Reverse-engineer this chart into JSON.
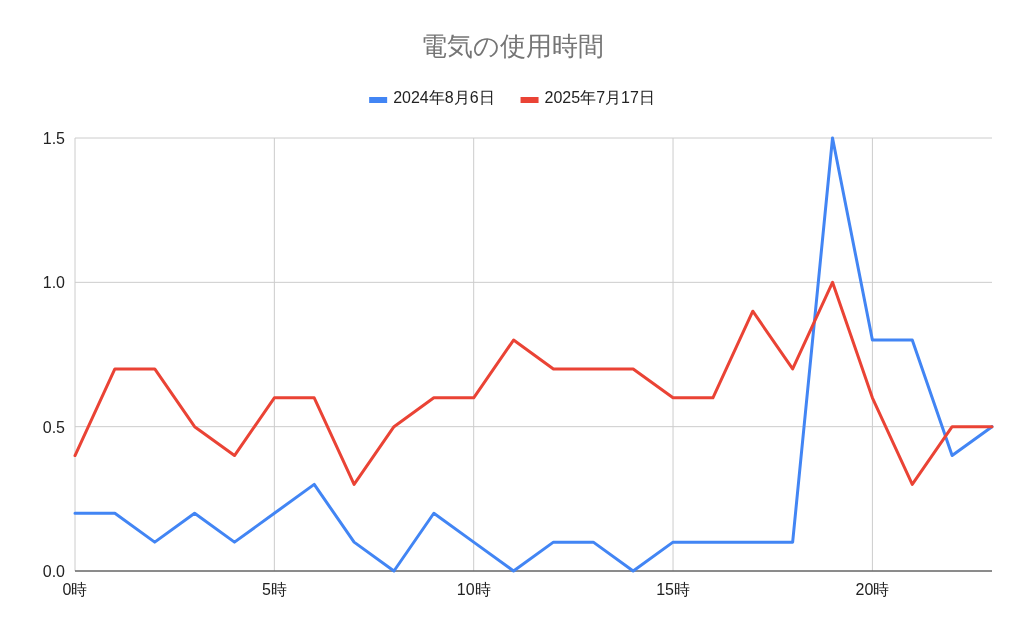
{
  "chart_data": {
    "type": "line",
    "title": "電気の使用時間",
    "x": [
      0,
      1,
      2,
      3,
      4,
      5,
      6,
      7,
      8,
      9,
      10,
      11,
      12,
      13,
      14,
      15,
      16,
      17,
      18,
      19,
      20,
      21,
      22,
      23
    ],
    "series": [
      {
        "name": "2024年8月6日",
        "color": "#4285f4",
        "values": [
          0.2,
          0.2,
          0.1,
          0.2,
          0.1,
          0.2,
          0.3,
          0.1,
          0,
          0.2,
          0.1,
          0,
          0.1,
          0.1,
          0,
          0.1,
          0.1,
          0.1,
          0.1,
          1.5,
          0.8,
          0.8,
          0.4,
          0.5
        ]
      },
      {
        "name": "2025年7月17日",
        "color": "#ea4335",
        "values": [
          0.4,
          0.7,
          0.7,
          0.5,
          0.4,
          0.6,
          0.6,
          0.3,
          0.5,
          0.6,
          0.6,
          0.8,
          0.7,
          0.7,
          0.7,
          0.6,
          0.6,
          0.9,
          0.7,
          1.0,
          0.6,
          0.3,
          0.5,
          0.5
        ]
      }
    ],
    "xlim": [
      0,
      23
    ],
    "xticks": [
      {
        "value": 0,
        "label": "0時"
      },
      {
        "value": 5,
        "label": "5時"
      },
      {
        "value": 10,
        "label": "10時"
      },
      {
        "value": 15,
        "label": "15時"
      },
      {
        "value": 20,
        "label": "20時"
      }
    ],
    "ylim": [
      0,
      1.5
    ],
    "yticks": [
      {
        "value": 0,
        "label": "0.0"
      },
      {
        "value": 0.5,
        "label": "0.5"
      },
      {
        "value": 1,
        "label": "1.0"
      },
      1.5
    ],
    "grid": true,
    "legend": "top",
    "marker": "none",
    "line_style": "solid"
  }
}
